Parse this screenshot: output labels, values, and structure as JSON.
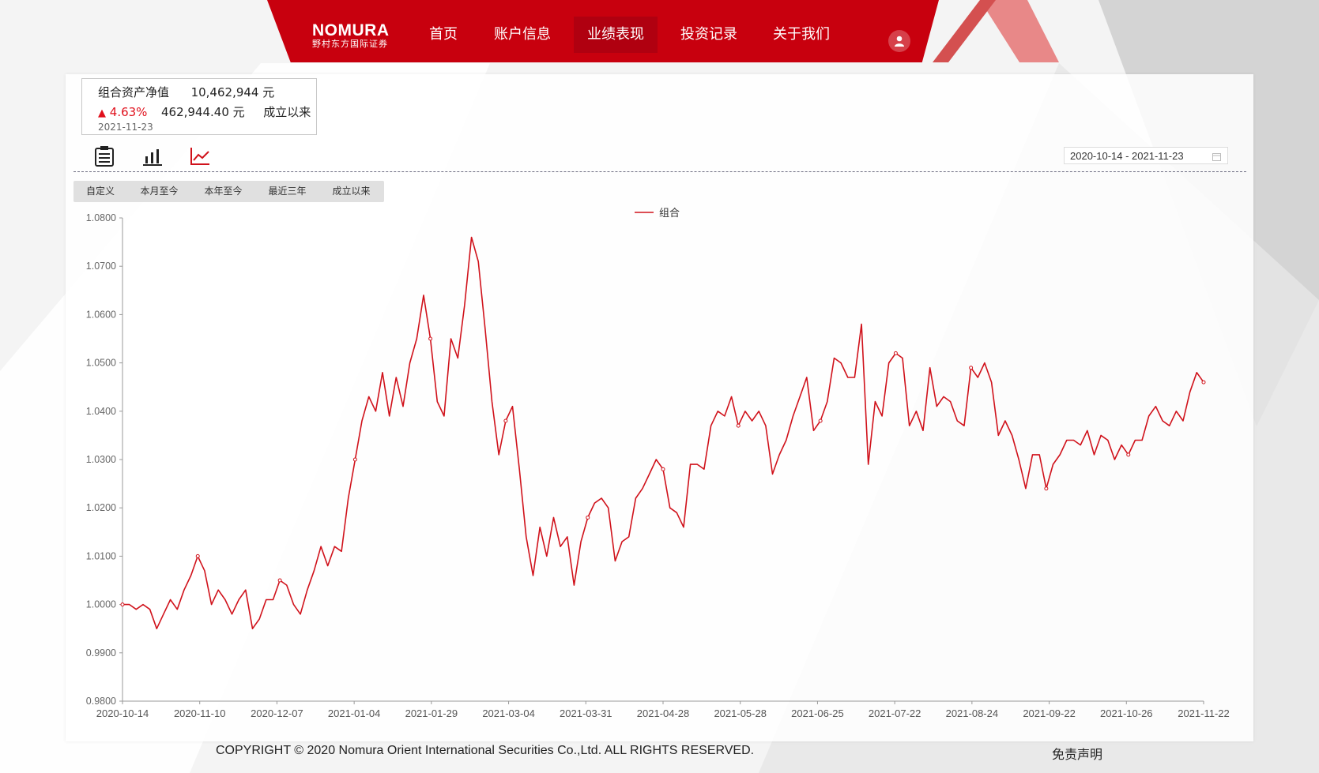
{
  "header": {
    "logo_text": "NOMURA",
    "logo_sub": "野村东方国际证券",
    "nav": [
      {
        "label": "首页",
        "active": false
      },
      {
        "label": "账户信息",
        "active": false
      },
      {
        "label": "业绩表现",
        "active": true
      },
      {
        "label": "投资记录",
        "active": false
      },
      {
        "label": "关于我们",
        "active": false
      }
    ],
    "user_icon": "user-icon"
  },
  "summary": {
    "label": "组合资产净值",
    "value": "10,462,944 元",
    "change_arrow": "▲",
    "change_pct": "4.63%",
    "change_amount": "462,944.40 元",
    "period": "成立以来",
    "date": "2021-11-23"
  },
  "toolbar": {
    "icons": [
      "table-icon",
      "bar-chart-icon",
      "line-chart-icon"
    ],
    "date_range": "2020-10-14 - 2021-11-23",
    "calendar_icon": "calendar-icon"
  },
  "range_tabs": [
    "自定义",
    "本月至今",
    "本年至今",
    "最近三年",
    "成立以来"
  ],
  "chart_data": {
    "type": "line",
    "legend": "组合",
    "legend_position": "top-center",
    "grid": false,
    "ylim": [
      0.98,
      1.08
    ],
    "y_ticks": [
      "1.0800",
      "1.0700",
      "1.0600",
      "1.0500",
      "1.0400",
      "1.0300",
      "1.0200",
      "1.0100",
      "1.0000",
      "0.9900",
      "0.9800"
    ],
    "x_ticks": [
      "2020-10-14",
      "2020-11-10",
      "2020-12-07",
      "2021-01-04",
      "2021-01-29",
      "2021-03-04",
      "2021-03-31",
      "2021-04-28",
      "2021-05-28",
      "2021-06-25",
      "2021-07-22",
      "2021-08-24",
      "2021-09-22",
      "2021-10-26",
      "2021-11-22"
    ],
    "color": "#d0121b",
    "series": [
      {
        "name": "组合",
        "values": [
          1.0,
          1.0,
          0.999,
          1.0,
          0.999,
          0.995,
          0.998,
          1.001,
          0.999,
          1.003,
          1.006,
          1.01,
          1.007,
          1.0,
          1.003,
          1.001,
          0.998,
          1.001,
          1.003,
          0.995,
          0.997,
          1.001,
          1.001,
          1.005,
          1.004,
          1.0,
          0.998,
          1.003,
          1.007,
          1.012,
          1.008,
          1.012,
          1.011,
          1.022,
          1.03,
          1.038,
          1.043,
          1.04,
          1.048,
          1.039,
          1.047,
          1.041,
          1.05,
          1.055,
          1.064,
          1.055,
          1.042,
          1.039,
          1.055,
          1.051,
          1.062,
          1.076,
          1.071,
          1.057,
          1.042,
          1.031,
          1.038,
          1.041,
          1.028,
          1.014,
          1.006,
          1.016,
          1.01,
          1.018,
          1.012,
          1.014,
          1.004,
          1.013,
          1.018,
          1.021,
          1.022,
          1.02,
          1.009,
          1.013,
          1.014,
          1.022,
          1.024,
          1.027,
          1.03,
          1.028,
          1.02,
          1.019,
          1.016,
          1.029,
          1.029,
          1.028,
          1.037,
          1.04,
          1.039,
          1.043,
          1.037,
          1.04,
          1.038,
          1.04,
          1.037,
          1.027,
          1.031,
          1.034,
          1.039,
          1.043,
          1.047,
          1.036,
          1.038,
          1.042,
          1.051,
          1.05,
          1.047,
          1.047,
          1.058,
          1.029,
          1.042,
          1.039,
          1.05,
          1.052,
          1.051,
          1.037,
          1.04,
          1.036,
          1.049,
          1.041,
          1.043,
          1.042,
          1.038,
          1.037,
          1.049,
          1.047,
          1.05,
          1.046,
          1.035,
          1.038,
          1.035,
          1.03,
          1.024,
          1.031,
          1.031,
          1.024,
          1.029,
          1.031,
          1.034,
          1.034,
          1.033,
          1.036,
          1.031,
          1.035,
          1.034,
          1.03,
          1.033,
          1.031,
          1.034,
          1.034,
          1.039,
          1.041,
          1.038,
          1.037,
          1.04,
          1.038,
          1.044,
          1.048,
          1.046
        ]
      }
    ]
  },
  "footer": {
    "copyright": "COPYRIGHT © 2020 Nomura Orient International Securities Co.,Ltd. ALL RIGHTS RESERVED.",
    "disclaimer": "免责声明"
  }
}
